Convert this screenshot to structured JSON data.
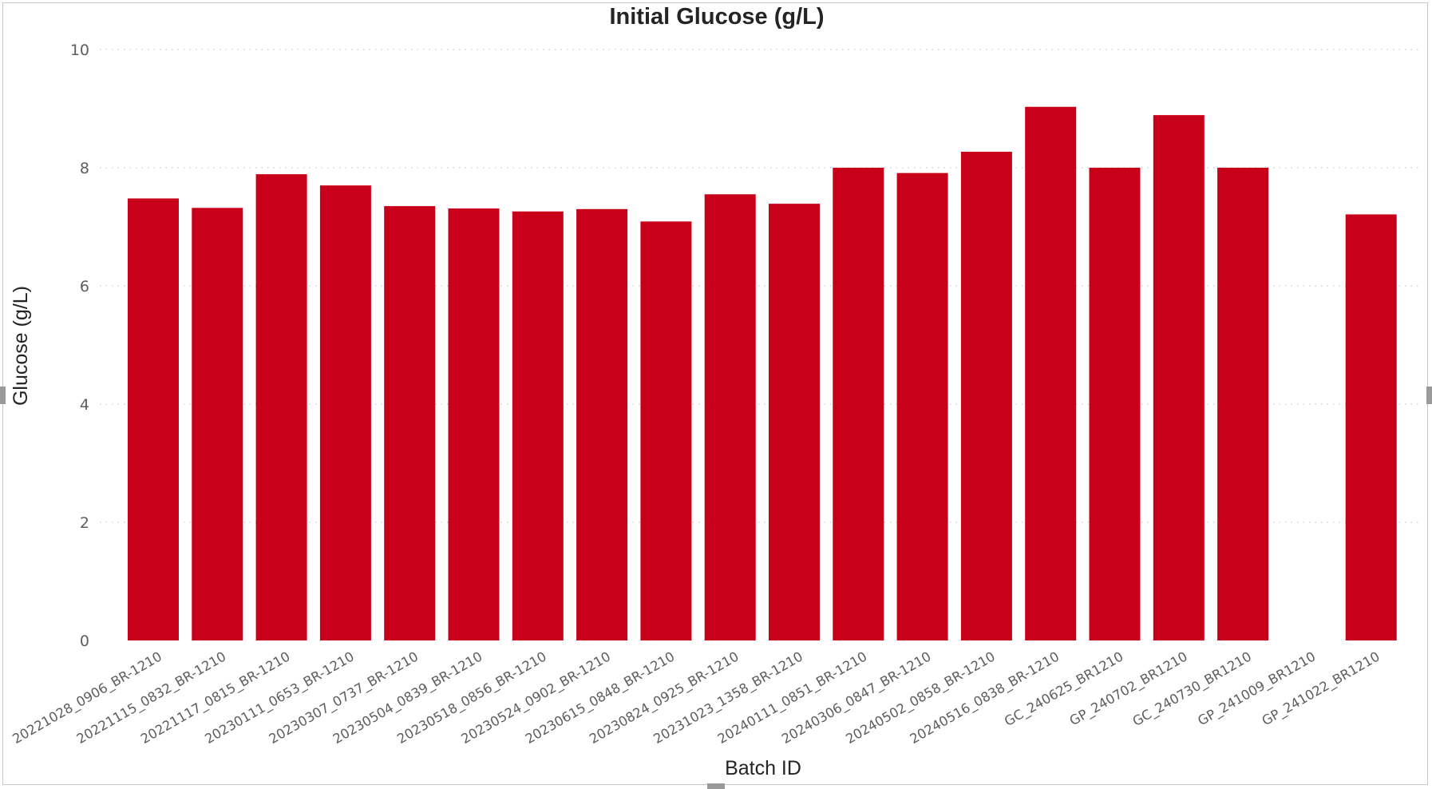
{
  "chart_data": {
    "type": "bar",
    "title": "Initial Glucose (g/L)",
    "xlabel": "Batch ID",
    "ylabel": "Glucose (g/L)",
    "ylim": [
      0,
      10
    ],
    "yticks": [
      0,
      2,
      4,
      6,
      8,
      10
    ],
    "grid": true,
    "bar_color": "#c8001a",
    "categories": [
      "20221028_0906_BR-1210",
      "20221115_0832_BR-1210",
      "20221117_0815_BR-1210",
      "20230111_0653_BR-1210",
      "20230307_0737_BR-1210",
      "20230504_0839_BR-1210",
      "20230518_0856_BR-1210",
      "20230524_0902_BR-1210",
      "20230615_0848_BR-1210",
      "20230824_0925_BR-1210",
      "20231023_1358_BR-1210",
      "20240111_0851_BR-1210",
      "20240306_0847_BR-1210",
      "20240502_0858_BR-1210",
      "20240516_0838_BR-1210",
      "GC_240625_BR1210",
      "GP_240702_BR1210",
      "GC_240730_BR1210",
      "GP_241009_BR1210",
      "GP_241022_BR1210"
    ],
    "values": [
      7.48,
      7.32,
      7.89,
      7.7,
      7.35,
      7.31,
      7.26,
      7.3,
      7.09,
      7.55,
      7.39,
      8.0,
      7.91,
      8.27,
      9.03,
      8.0,
      8.89,
      8.0,
      null,
      7.21
    ]
  }
}
